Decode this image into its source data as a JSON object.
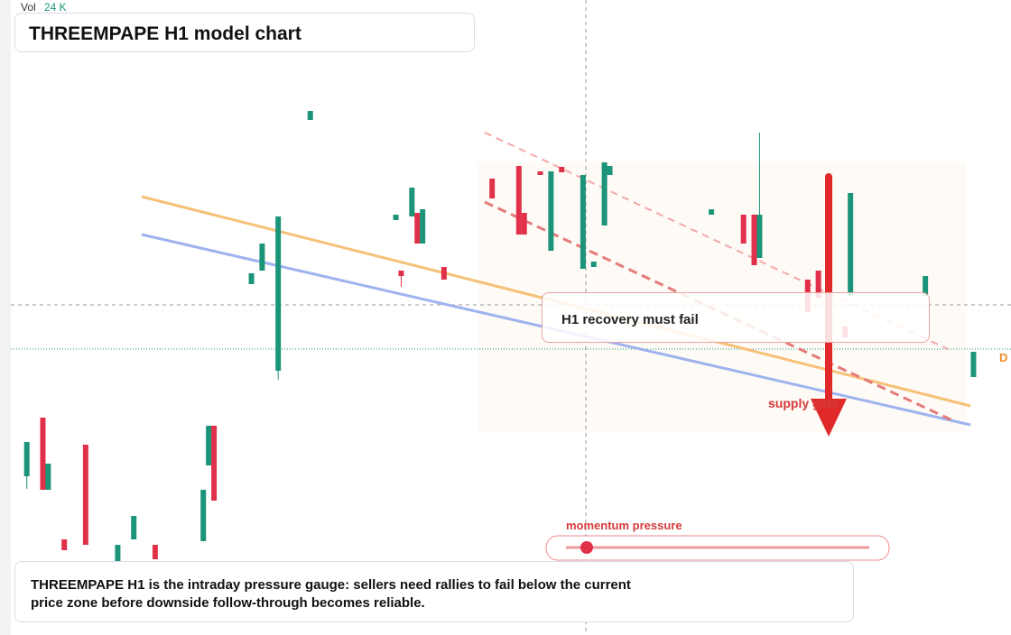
{
  "chart_data": {
    "type": "candlestick",
    "vol_label": "Vol",
    "vol_value": "24 K",
    "title": "THREEMPAPE H1 model chart",
    "annotation": "H1 recovery must fail",
    "supply_label": "supply gate",
    "gauge_label": "momentum pressure",
    "edge_tag": "D",
    "caption": "THREEMPAPE H1 is the intraday pressure gauge: sellers need rallies to fail below the current price zone before downside follow-through becomes reliable.",
    "ylim": [
      29.6,
      100
    ],
    "xlim": [
      0,
      187
    ],
    "colors": {
      "up": "#1b9479",
      "down": "#e0304a"
    },
    "x": [
      4,
      7,
      8,
      11,
      15,
      21,
      24,
      28,
      37,
      38,
      39,
      46,
      48,
      51,
      57,
      73,
      74,
      76,
      77,
      78,
      82,
      91,
      96,
      97,
      100,
      102,
      104,
      108,
      110,
      112,
      113,
      132,
      138,
      140,
      141,
      150,
      152,
      157,
      158,
      172,
      181
    ],
    "candles": [
      {
        "o": 47.2,
        "h": 51.0,
        "l": 45.8,
        "c": 51.0
      },
      {
        "o": 53.7,
        "h": 53.7,
        "l": 45.7,
        "c": 45.7
      },
      {
        "o": 45.7,
        "h": 48.6,
        "l": 45.7,
        "c": 48.6
      },
      {
        "o": 40.2,
        "h": 40.2,
        "l": 39.0,
        "c": 39.0
      },
      {
        "o": 50.7,
        "h": 50.7,
        "l": 39.6,
        "c": 39.6
      },
      {
        "o": 37.8,
        "h": 39.6,
        "l": 37.8,
        "c": 39.6
      },
      {
        "o": 40.2,
        "h": 42.8,
        "l": 40.2,
        "c": 42.8
      },
      {
        "o": 39.6,
        "h": 39.6,
        "l": 38.0,
        "c": 38.0
      },
      {
        "o": 40.0,
        "h": 45.7,
        "l": 40.0,
        "c": 45.7
      },
      {
        "o": 48.4,
        "h": 52.8,
        "l": 48.4,
        "c": 52.8
      },
      {
        "o": 52.8,
        "h": 52.8,
        "l": 44.5,
        "c": 44.5
      },
      {
        "o": 68.5,
        "h": 69.7,
        "l": 68.5,
        "c": 69.7
      },
      {
        "o": 70.0,
        "h": 73.0,
        "l": 70.0,
        "c": 73.0
      },
      {
        "o": 58.9,
        "h": 76.0,
        "l": 57.9,
        "c": 76.0
      },
      {
        "o": 86.7,
        "h": 87.7,
        "l": 86.7,
        "c": 87.7
      },
      {
        "o": 75.6,
        "h": 76.2,
        "l": 75.6,
        "c": 76.2
      },
      {
        "o": 70.0,
        "h": 70.0,
        "l": 68.2,
        "c": 69.4
      },
      {
        "o": 76.0,
        "h": 79.2,
        "l": 76.0,
        "c": 79.2
      },
      {
        "o": 76.4,
        "h": 76.4,
        "l": 73.0,
        "c": 73.0
      },
      {
        "o": 73.0,
        "h": 76.8,
        "l": 73.0,
        "c": 76.8
      },
      {
        "o": 70.4,
        "h": 70.4,
        "l": 69.0,
        "c": 69.0
      },
      {
        "o": 80.2,
        "h": 80.2,
        "l": 78.0,
        "c": 78.0
      },
      {
        "o": 81.6,
        "h": 81.6,
        "l": 74.0,
        "c": 74.0
      },
      {
        "o": 76.4,
        "h": 76.4,
        "l": 74.0,
        "c": 74.0
      },
      {
        "o": 81.0,
        "h": 81.0,
        "l": 80.6,
        "c": 80.6
      },
      {
        "o": 72.2,
        "h": 81.0,
        "l": 72.2,
        "c": 81.0
      },
      {
        "o": 81.5,
        "h": 81.5,
        "l": 80.9,
        "c": 80.9
      },
      {
        "o": 70.2,
        "h": 80.6,
        "l": 70.2,
        "c": 80.6
      },
      {
        "o": 70.4,
        "h": 71.0,
        "l": 70.4,
        "c": 71.0
      },
      {
        "o": 75.0,
        "h": 82.0,
        "l": 75.0,
        "c": 82.0
      },
      {
        "o": 80.6,
        "h": 81.6,
        "l": 80.6,
        "c": 81.6
      },
      {
        "o": 76.2,
        "h": 76.8,
        "l": 76.2,
        "c": 76.8
      },
      {
        "o": 76.2,
        "h": 76.2,
        "l": 73.0,
        "c": 73.0
      },
      {
        "o": 76.2,
        "h": 76.2,
        "l": 70.6,
        "c": 70.6
      },
      {
        "o": 71.4,
        "h": 85.3,
        "l": 71.4,
        "c": 76.2
      },
      {
        "o": 69.0,
        "h": 69.0,
        "l": 65.4,
        "c": 65.4
      },
      {
        "o": 70.0,
        "h": 70.0,
        "l": 67.0,
        "c": 67.0
      },
      {
        "o": 63.8,
        "h": 63.8,
        "l": 62.6,
        "c": 62.6
      },
      {
        "o": 67.2,
        "h": 78.6,
        "l": 67.2,
        "c": 78.6
      },
      {
        "o": 67.2,
        "h": 69.4,
        "l": 67.2,
        "c": 69.4
      },
      {
        "o": 58.2,
        "h": 61.0,
        "l": 58.2,
        "c": 61.0
      }
    ]
  }
}
